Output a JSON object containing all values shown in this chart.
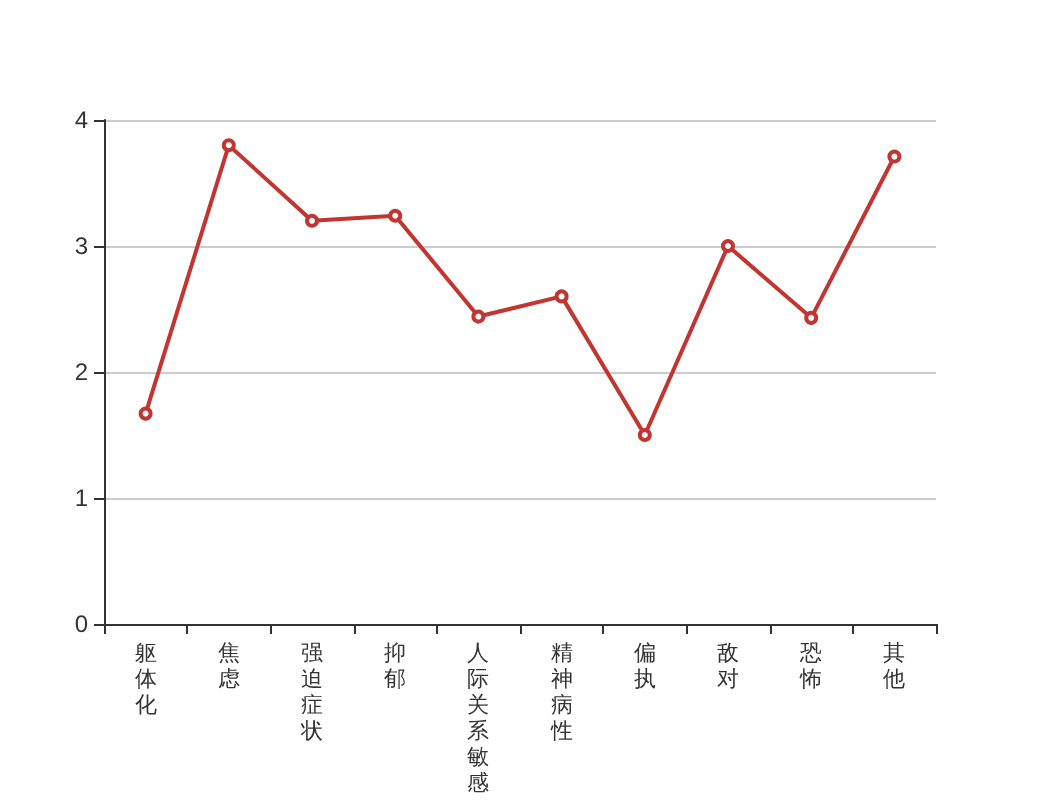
{
  "chart_data": {
    "type": "line",
    "categories": [
      "躯体化",
      "焦虑",
      "强迫症状",
      "抑郁",
      "人际关系敏感",
      "精神病性",
      "偏执",
      "敌对",
      "恐怖",
      "其他"
    ],
    "series": [
      {
        "color": "#c23531",
        "values": [
          1.67,
          3.8,
          3.2,
          3.24,
          2.44,
          2.6,
          1.5,
          3.0,
          2.43,
          3.71
        ]
      }
    ],
    "ylim": [
      0,
      4
    ],
    "yticks": [
      0,
      1,
      2,
      3,
      4
    ],
    "grid": "y",
    "marker": "circle",
    "line_style": "solid"
  }
}
